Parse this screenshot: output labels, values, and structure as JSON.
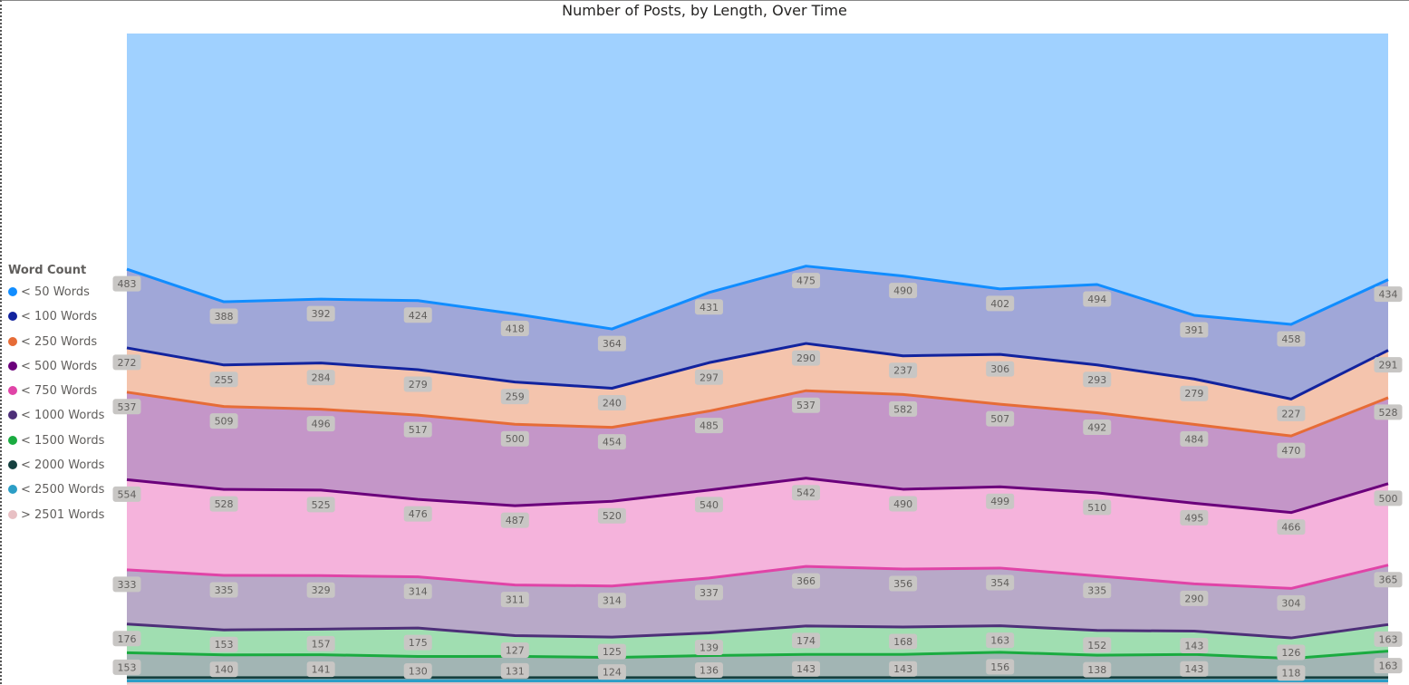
{
  "chart_data": {
    "type": "area",
    "title": "Number of Posts, by Length, Over Time",
    "legend_title": "Word Count",
    "legend_position": "left",
    "stacked": true,
    "ylim": [
      0,
      4000
    ],
    "grid": "vertical-dotted",
    "x": [
      1,
      2,
      3,
      4,
      5,
      6,
      7,
      8,
      9,
      10,
      11,
      12,
      13,
      14
    ],
    "series": [
      {
        "name": "< 50 Words",
        "color": "#118dff",
        "fill": "#a0d1ff",
        "values": [
          483,
          388,
          392,
          424,
          418,
          364,
          431,
          475,
          490,
          402,
          494,
          391,
          458,
          434
        ],
        "labels_shown": true
      },
      {
        "name": "< 100 Words",
        "color": "#12239e",
        "fill": "#a0a7d8",
        "values": [
          272,
          255,
          284,
          279,
          259,
          240,
          297,
          290,
          237,
          306,
          293,
          279,
          227,
          291
        ],
        "labels_shown": true
      },
      {
        "name": "< 250 Words",
        "color": "#e66c37",
        "fill": "#f4c4ad",
        "values": [
          537,
          509,
          496,
          517,
          500,
          454,
          485,
          537,
          582,
          507,
          492,
          484,
          470,
          528
        ],
        "labels_shown": true
      },
      {
        "name": "< 500 Words",
        "color": "#6b007b",
        "fill": "#c496c8",
        "values": [
          554,
          528,
          525,
          476,
          487,
          520,
          540,
          542,
          490,
          499,
          510,
          495,
          466,
          500
        ],
        "labels_shown": true
      },
      {
        "name": "< 750 Words",
        "color": "#e044a7",
        "fill": "#f5b3dc",
        "values": [
          333,
          335,
          329,
          314,
          311,
          314,
          337,
          366,
          356,
          354,
          335,
          290,
          304,
          365
        ],
        "labels_shown": true
      },
      {
        "name": "< 1000 Words",
        "color": "#4d2f78",
        "fill": "#b8a9c8",
        "values": [
          176,
          153,
          157,
          175,
          127,
          125,
          139,
          174,
          168,
          163,
          152,
          143,
          126,
          163
        ],
        "labels_shown": true
      },
      {
        "name": "< 1500 Words",
        "color": "#1aab40",
        "fill": "#a0deb1",
        "values": [
          153,
          140,
          141,
          130,
          131,
          124,
          136,
          143,
          143,
          156,
          138,
          143,
          118,
          163
        ],
        "labels_shown": true
      },
      {
        "name": "< 2000 Words",
        "color": "#15403f",
        "fill": "#a2b5b4",
        "values": [
          20,
          20,
          20,
          20,
          20,
          20,
          20,
          20,
          20,
          20,
          20,
          20,
          20,
          20
        ],
        "labels_shown": false
      },
      {
        "name": "< 2500 Words",
        "color": "#2c9ec6",
        "fill": "#aedcec",
        "values": [
          15,
          15,
          15,
          15,
          15,
          15,
          15,
          15,
          15,
          15,
          15,
          15,
          15,
          15
        ],
        "labels_shown": false
      },
      {
        "name": "> 2501 Words",
        "color": "#e8c0c4",
        "fill": "#f6e2e4",
        "values": [
          10,
          10,
          10,
          10,
          10,
          10,
          10,
          10,
          10,
          10,
          10,
          10,
          10,
          10
        ],
        "labels_shown": false
      }
    ]
  }
}
